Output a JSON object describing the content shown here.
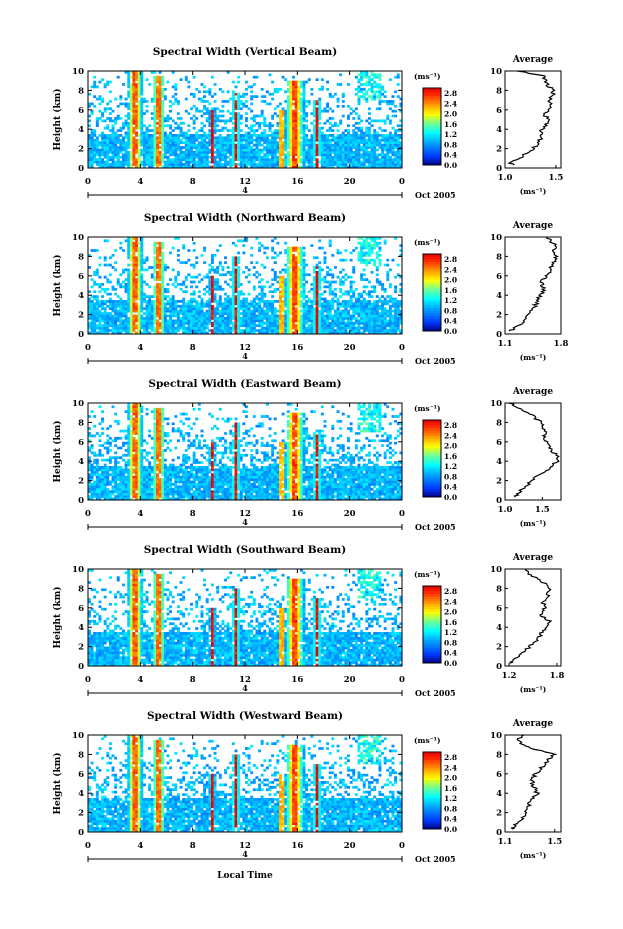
{
  "figure": {
    "x_label": "Local Time"
  },
  "chart_data": [
    {
      "type": "heatmap",
      "title": "Spectral Width (Vertical Beam)",
      "ylabel": "Height (km)",
      "xlabel": "Local Time",
      "x_ticks": [
        "0",
        "4",
        "8",
        "12",
        "16",
        "20",
        "0"
      ],
      "date_label": "4",
      "date_suffix": "Oct 2005",
      "y_ticks": [
        "0",
        "2",
        "4",
        "6",
        "8",
        "10"
      ],
      "xlim": [
        0,
        24
      ],
      "ylim": [
        0,
        10
      ],
      "colorbar": {
        "unit": "(ms⁻¹)",
        "ticks": [
          "0.0",
          "0.4",
          "0.8",
          "1.2",
          "1.6",
          "2.0",
          "2.4",
          "2.8"
        ],
        "range": [
          0,
          3.0
        ]
      },
      "average_profile": {
        "title": "Average",
        "xlabel": "(ms⁻¹)",
        "x_ticks": [
          "1.0",
          "1.5"
        ],
        "xlim": [
          1.0,
          1.55
        ],
        "y_ticks": [
          "0",
          "2",
          "4",
          "6",
          "8",
          "10"
        ],
        "heights": [
          0.3,
          0.5,
          1.0,
          1.5,
          2.0,
          2.5,
          3.0,
          3.5,
          4.0,
          4.5,
          5.0,
          5.5,
          6.0,
          6.5,
          7.0,
          7.5,
          8.0,
          8.5,
          9.0,
          9.5,
          10.0
        ],
        "values": [
          1.08,
          1.05,
          1.15,
          1.2,
          1.28,
          1.32,
          1.35,
          1.37,
          1.36,
          1.41,
          1.42,
          1.39,
          1.42,
          1.44,
          1.43,
          1.47,
          1.48,
          1.42,
          1.4,
          1.38,
          1.12
        ]
      }
    },
    {
      "type": "heatmap",
      "title": "Spectral Width (Northward Beam)",
      "ylabel": "Height (km)",
      "xlabel": "Local Time",
      "x_ticks": [
        "0",
        "4",
        "8",
        "12",
        "16",
        "20",
        "0"
      ],
      "date_label": "4",
      "date_suffix": "Oct 2005",
      "y_ticks": [
        "0",
        "2",
        "4",
        "6",
        "8",
        "10"
      ],
      "xlim": [
        0,
        24
      ],
      "ylim": [
        0,
        10
      ],
      "colorbar": {
        "unit": "(ms⁻¹)",
        "ticks": [
          "0.0",
          "0.4",
          "0.8",
          "1.2",
          "1.6",
          "2.0",
          "2.4",
          "2.8"
        ],
        "range": [
          0,
          3.0
        ]
      },
      "average_profile": {
        "title": "Average",
        "xlabel": "(ms⁻¹)",
        "x_ticks": [
          "1.1",
          "1.8"
        ],
        "xlim": [
          1.1,
          1.8
        ],
        "y_ticks": [
          "0",
          "2",
          "4",
          "6",
          "8",
          "10"
        ],
        "heights": [
          0.3,
          0.5,
          1.0,
          1.5,
          2.0,
          2.5,
          3.0,
          3.5,
          4.0,
          4.5,
          5.0,
          5.5,
          6.0,
          6.5,
          7.0,
          7.5,
          8.0,
          8.5,
          9.0,
          9.5,
          10.0
        ],
        "values": [
          1.14,
          1.2,
          1.28,
          1.35,
          1.4,
          1.45,
          1.48,
          1.52,
          1.53,
          1.6,
          1.56,
          1.55,
          1.62,
          1.66,
          1.68,
          1.72,
          1.75,
          1.7,
          1.74,
          1.68,
          1.62
        ]
      }
    },
    {
      "type": "heatmap",
      "title": "Spectral Width (Eastward Beam)",
      "ylabel": "Height (km)",
      "xlabel": "Local Time",
      "x_ticks": [
        "0",
        "4",
        "8",
        "12",
        "16",
        "20",
        "0"
      ],
      "date_label": "4",
      "date_suffix": "Oct 2005",
      "y_ticks": [
        "0",
        "2",
        "4",
        "6",
        "8",
        "10"
      ],
      "xlim": [
        0,
        24
      ],
      "ylim": [
        0,
        10
      ],
      "colorbar": {
        "unit": "(ms⁻¹)",
        "ticks": [
          "0.0",
          "0.4",
          "0.8",
          "1.2",
          "1.6",
          "2.0",
          "2.4",
          "2.8"
        ],
        "range": [
          0,
          3.0
        ]
      },
      "average_profile": {
        "title": "Average",
        "xlabel": "(ms⁻¹)",
        "x_ticks": [
          "1.0",
          "1.5"
        ],
        "xlim": [
          1.0,
          1.75
        ],
        "y_ticks": [
          "0",
          "2",
          "4",
          "6",
          "8",
          "10"
        ],
        "heights": [
          0.3,
          0.5,
          1.0,
          1.5,
          2.0,
          2.5,
          3.0,
          3.5,
          4.0,
          4.5,
          5.0,
          5.5,
          6.0,
          6.5,
          7.0,
          7.5,
          8.0,
          8.5,
          9.0,
          9.5,
          10.0
        ],
        "values": [
          1.12,
          1.15,
          1.22,
          1.3,
          1.35,
          1.45,
          1.55,
          1.62,
          1.7,
          1.72,
          1.62,
          1.58,
          1.55,
          1.52,
          1.56,
          1.5,
          1.48,
          1.4,
          1.3,
          1.2,
          1.05
        ]
      }
    },
    {
      "type": "heatmap",
      "title": "Spectral Width (Southward Beam)",
      "ylabel": "Height (km)",
      "xlabel": "Local Time",
      "x_ticks": [
        "0",
        "4",
        "8",
        "12",
        "16",
        "20",
        "0"
      ],
      "date_label": "4",
      "date_suffix": "Oct 2005",
      "y_ticks": [
        "0",
        "2",
        "4",
        "6",
        "8",
        "10"
      ],
      "xlim": [
        0,
        24
      ],
      "ylim": [
        0,
        10
      ],
      "colorbar": {
        "unit": "(ms⁻¹)",
        "ticks": [
          "0.0",
          "0.4",
          "0.8",
          "1.2",
          "1.6",
          "2.0",
          "2.4",
          "2.8"
        ],
        "range": [
          0,
          3.0
        ]
      },
      "average_profile": {
        "title": "Average",
        "xlabel": "(ms⁻¹)",
        "x_ticks": [
          "1.2",
          "1.8"
        ],
        "xlim": [
          1.15,
          1.85
        ],
        "y_ticks": [
          "0",
          "2",
          "4",
          "6",
          "8",
          "10"
        ],
        "heights": [
          0.3,
          0.5,
          1.0,
          1.5,
          2.0,
          2.5,
          3.0,
          3.5,
          4.0,
          4.5,
          5.0,
          5.5,
          6.0,
          6.5,
          7.0,
          7.5,
          8.0,
          8.5,
          9.0,
          9.5,
          10.0
        ],
        "values": [
          1.2,
          1.25,
          1.32,
          1.4,
          1.45,
          1.52,
          1.58,
          1.62,
          1.68,
          1.72,
          1.63,
          1.6,
          1.66,
          1.62,
          1.7,
          1.66,
          1.72,
          1.65,
          1.55,
          1.45,
          1.4
        ]
      }
    },
    {
      "type": "heatmap",
      "title": "Spectral Width (Westward Beam)",
      "ylabel": "Height (km)",
      "xlabel": "Local Time",
      "x_ticks": [
        "0",
        "4",
        "8",
        "12",
        "16",
        "20",
        "0"
      ],
      "date_label": "4",
      "date_suffix": "Oct 2005",
      "y_ticks": [
        "0",
        "2",
        "4",
        "6",
        "8",
        "10"
      ],
      "xlim": [
        0,
        24
      ],
      "ylim": [
        0,
        10
      ],
      "colorbar": {
        "unit": "(ms⁻¹)",
        "ticks": [
          "0.0",
          "0.4",
          "0.8",
          "1.2",
          "1.6",
          "2.0",
          "2.4",
          "2.8"
        ],
        "range": [
          0,
          3.0
        ]
      },
      "average_profile": {
        "title": "Average",
        "xlabel": "(ms⁻¹)",
        "x_ticks": [
          "1.1",
          "1.5"
        ],
        "xlim": [
          1.1,
          1.55
        ],
        "y_ticks": [
          "0",
          "2",
          "4",
          "6",
          "8",
          "10"
        ],
        "heights": [
          0.3,
          0.5,
          1.0,
          1.5,
          2.0,
          2.5,
          3.0,
          3.5,
          4.0,
          4.5,
          5.0,
          5.5,
          6.0,
          6.5,
          7.0,
          7.5,
          8.0,
          8.5,
          9.0,
          9.5,
          10.0
        ],
        "values": [
          1.15,
          1.16,
          1.2,
          1.24,
          1.26,
          1.28,
          1.3,
          1.32,
          1.36,
          1.34,
          1.32,
          1.31,
          1.35,
          1.38,
          1.42,
          1.45,
          1.5,
          1.35,
          1.25,
          1.2,
          1.25
        ]
      }
    }
  ]
}
